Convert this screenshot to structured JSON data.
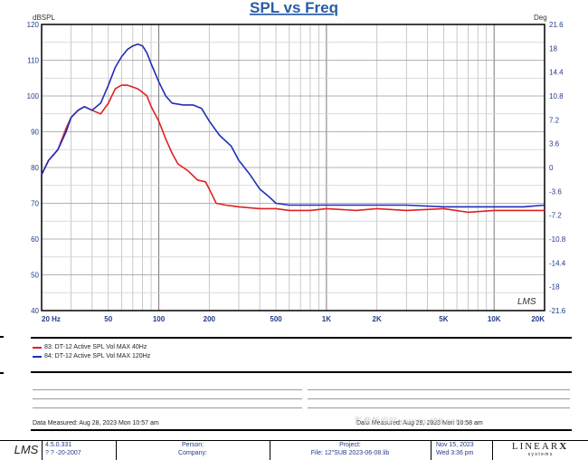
{
  "chart_data": {
    "type": "line",
    "title": "SPL vs Freq",
    "ylabel_left": "dBSPL",
    "ylabel_right": "Deg",
    "xscale": "log",
    "xlim": [
      20,
      20000
    ],
    "ylim": [
      40,
      120
    ],
    "ylim_right": [
      -21.6,
      21.6
    ],
    "x_tick_labels": [
      {
        "label": "20 Hz",
        "x": 20
      },
      {
        "label": "50",
        "x": 50
      },
      {
        "label": "100",
        "x": 100
      },
      {
        "label": "200",
        "x": 200
      },
      {
        "label": "500",
        "x": 500
      },
      {
        "label": "1K",
        "x": 1000
      },
      {
        "label": "2K",
        "x": 2000
      },
      {
        "label": "5K",
        "x": 5000
      },
      {
        "label": "10K",
        "x": 10000
      },
      {
        "label": "20K",
        "x": 20000
      }
    ],
    "y_tick_labels": [
      "40",
      "50",
      "60",
      "70",
      "80",
      "90",
      "100",
      "110",
      "120"
    ],
    "y_right_tick_labels": [
      "-21.6",
      "-18",
      "-14.4",
      "-10.8",
      "-7.2",
      "-3.6",
      "0",
      "3.6",
      "7.2",
      "10.8",
      "14.4",
      "18",
      "21.6"
    ],
    "grid": true,
    "series": [
      {
        "name": "83: DT-12  Active  SPL Vol  MAX 40Hz",
        "color": "#e02020",
        "x": [
          20,
          22,
          25,
          28,
          30,
          33,
          36,
          40,
          45,
          50,
          55,
          60,
          65,
          70,
          75,
          80,
          85,
          90,
          100,
          110,
          120,
          130,
          150,
          170,
          190,
          200,
          220,
          250,
          300,
          400,
          500,
          600,
          800,
          1000,
          1500,
          2000,
          3000,
          5000,
          7000,
          10000,
          15000,
          20000
        ],
        "y": [
          78,
          82,
          85,
          91,
          94,
          96,
          97,
          96,
          95,
          98,
          102,
          103,
          103,
          102.5,
          102,
          101,
          100,
          97,
          93,
          88,
          84,
          81,
          79,
          76.5,
          76,
          74,
          70,
          69.5,
          69,
          68.5,
          68.5,
          68,
          68,
          68.5,
          68,
          68.5,
          68,
          68.5,
          67.5,
          68,
          68,
          68
        ]
      },
      {
        "name": "84: DT-12  Active  SPL Vol  MAX 120Hz",
        "color": "#1f2fb8",
        "x": [
          20,
          22,
          25,
          28,
          30,
          33,
          36,
          40,
          45,
          50,
          55,
          60,
          65,
          70,
          75,
          80,
          85,
          90,
          100,
          110,
          120,
          140,
          160,
          180,
          200,
          230,
          270,
          300,
          350,
          400,
          450,
          500,
          600,
          800,
          1000,
          2000,
          3000,
          5000,
          7000,
          10000,
          15000,
          20000
        ],
        "y": [
          78,
          82,
          85,
          90,
          94,
          96,
          97,
          96,
          98,
          103,
          108,
          111,
          113,
          114,
          114.5,
          114,
          112,
          109,
          104,
          100,
          98,
          97.5,
          97.5,
          96.5,
          93,
          89,
          86,
          82,
          78,
          74,
          72,
          70,
          69.5,
          69.5,
          69.5,
          69.5,
          69.5,
          69,
          69,
          69,
          69,
          69.5
        ]
      }
    ],
    "watermark": "LMS"
  },
  "legend": {
    "items": [
      {
        "label": "83: DT-12  Active  SPL Vol  MAX 40Hz",
        "color": "#e02020"
      },
      {
        "label": "84: DT-12  Active  SPL Vol  MAX 120Hz",
        "color": "#1f2fb8"
      }
    ]
  },
  "notes": {
    "measured_left": "Data Measured: Aug 28, 2023   Mon 10:57 am",
    "measured_right": "Data Measured: Aug 28, 2023   Mon 10:58 am"
  },
  "footer": {
    "logo": "LMS",
    "version": "4.5.0.331",
    "version_date": "? ? -20-2007",
    "person_label": "Person:",
    "company_label": "Company:",
    "project_label": "Project:",
    "file_label": "File: 12\"SUB 2023-06-08.lib",
    "date": "Nov 15, 2023",
    "time": "Wed  3:36 pm",
    "brand": "LINEAR",
    "brand_x": "X",
    "brand_sub": "s y s t e m s"
  },
  "watermark_text": "影音新闻网 www.avl88.com"
}
